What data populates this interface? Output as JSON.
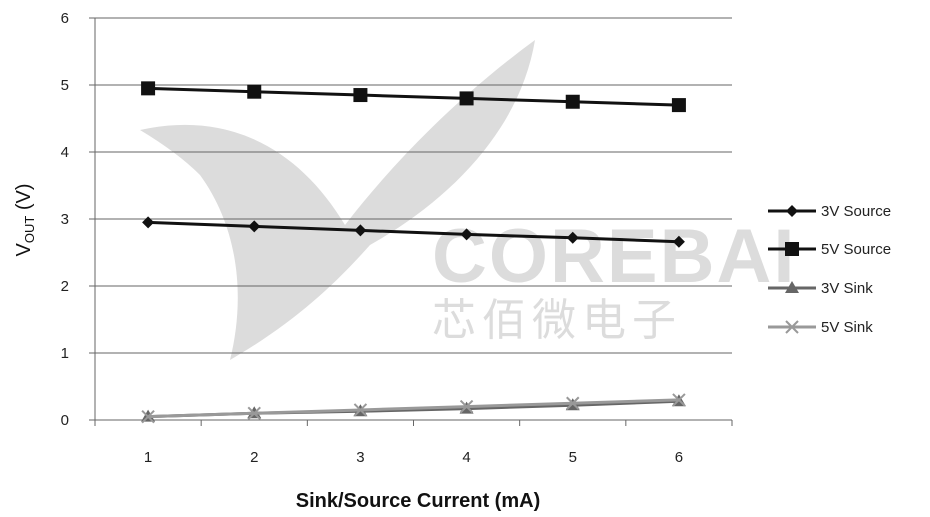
{
  "chart_data": {
    "type": "line",
    "title": "",
    "xlabel": "Sink/Source Current (mA)",
    "ylabel_main": "V",
    "ylabel_sub": "OUT",
    "ylabel_unit": " (V)",
    "x": [
      1,
      2,
      3,
      4,
      5,
      6
    ],
    "xlim": [
      0.5,
      6.5
    ],
    "ylim": [
      0,
      6
    ],
    "yticks": [
      0,
      1,
      2,
      3,
      4,
      5,
      6
    ],
    "grid": "horizontal",
    "legend_position": "right",
    "series": [
      {
        "name": "3V Source",
        "marker": "diamond",
        "color": "#111111",
        "values": [
          2.95,
          2.89,
          2.83,
          2.77,
          2.72,
          2.66
        ]
      },
      {
        "name": "5V Source",
        "marker": "square",
        "color": "#111111",
        "values": [
          4.95,
          4.9,
          4.85,
          4.8,
          4.75,
          4.7
        ]
      },
      {
        "name": "3V Sink",
        "marker": "triangle",
        "color": "#666666",
        "values": [
          0.05,
          0.1,
          0.13,
          0.17,
          0.22,
          0.28
        ]
      },
      {
        "name": "5V Sink",
        "marker": "x",
        "color": "#999999",
        "values": [
          0.05,
          0.1,
          0.15,
          0.2,
          0.25,
          0.3
        ]
      }
    ]
  },
  "watermark": {
    "text": "COREBAI",
    "text_cn": "芯佰微电子",
    "color": "#dcdcdc"
  }
}
